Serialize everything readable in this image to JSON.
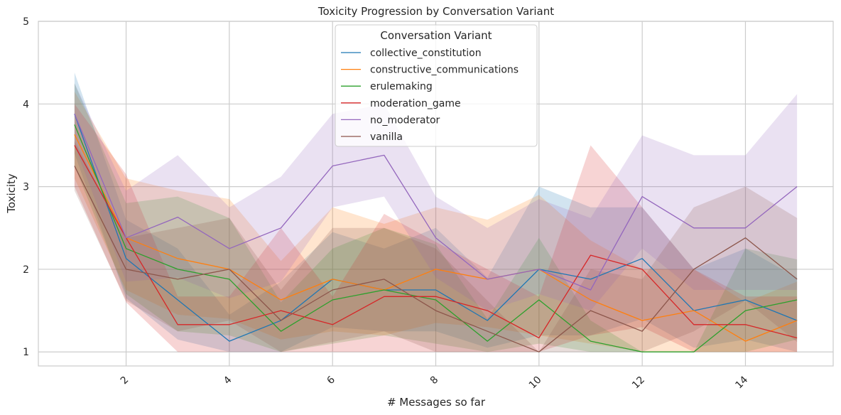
{
  "chart_data": {
    "type": "line",
    "title": "Toxicity Progression by Conversation Variant",
    "xlabel": "# Messages so far",
    "ylabel": "Toxicity",
    "xlim": [
      0.3,
      15.7
    ],
    "ylim": [
      0.83,
      5.0
    ],
    "x_ticks": [
      2,
      4,
      6,
      8,
      10,
      12,
      14
    ],
    "y_ticks": [
      1,
      2,
      3,
      4,
      5
    ],
    "x_tick_rotation": 45,
    "grid": true,
    "legend": {
      "title": "Conversation Variant",
      "placement": "top-center"
    },
    "x": [
      1,
      2,
      3,
      4,
      5,
      6,
      7,
      8,
      9,
      10,
      11,
      12,
      13,
      14,
      15
    ],
    "series": [
      {
        "name": "collective_constitution",
        "color": "#1f77b4",
        "values": [
          3.88,
          2.13,
          1.63,
          1.13,
          1.38,
          1.88,
          1.75,
          1.75,
          1.38,
          2.0,
          1.88,
          2.13,
          1.5,
          1.63,
          1.38
        ],
        "lower": [
          3.4,
          1.65,
          1.15,
          1.0,
          1.0,
          1.3,
          1.25,
          1.25,
          1.05,
          1.2,
          1.2,
          1.4,
          1.05,
          1.15,
          1.0
        ],
        "upper": [
          4.38,
          2.6,
          2.25,
          1.45,
          1.85,
          2.45,
          2.25,
          2.5,
          1.9,
          3.0,
          2.75,
          2.75,
          2.0,
          2.25,
          1.9
        ]
      },
      {
        "name": "constructive_communications",
        "color": "#ff7f0e",
        "values": [
          3.63,
          2.38,
          2.13,
          2.0,
          1.63,
          1.88,
          1.75,
          2.0,
          1.88,
          2.0,
          1.63,
          1.38,
          1.5,
          1.13,
          1.38
        ],
        "lower": [
          3.1,
          1.75,
          1.45,
          1.4,
          1.15,
          1.25,
          1.2,
          1.35,
          1.3,
          1.2,
          1.1,
          1.0,
          1.0,
          1.0,
          1.0
        ],
        "upper": [
          4.15,
          3.1,
          2.95,
          2.85,
          2.1,
          2.75,
          2.55,
          2.75,
          2.6,
          2.9,
          2.35,
          2.0,
          2.0,
          1.6,
          1.85
        ]
      },
      {
        "name": "erulemaking",
        "color": "#2ca02c",
        "values": [
          3.75,
          2.25,
          2.0,
          1.88,
          1.25,
          1.63,
          1.75,
          1.63,
          1.13,
          1.63,
          1.13,
          1.0,
          1.0,
          1.5,
          1.63
        ],
        "lower": [
          3.25,
          1.7,
          1.25,
          1.2,
          1.0,
          1.1,
          1.2,
          1.1,
          1.0,
          1.1,
          1.0,
          1.0,
          1.0,
          1.0,
          1.15
        ],
        "upper": [
          4.25,
          2.8,
          2.88,
          2.62,
          1.6,
          2.25,
          2.5,
          2.3,
          1.4,
          2.38,
          1.38,
          1.0,
          1.0,
          2.25,
          2.12
        ]
      },
      {
        "name": "moderation_game",
        "color": "#d62728",
        "values": [
          3.5,
          2.38,
          1.33,
          1.33,
          1.5,
          1.33,
          1.67,
          1.67,
          1.5,
          1.17,
          2.17,
          2.0,
          1.33,
          1.33,
          1.17
        ],
        "lower": [
          3.0,
          1.6,
          1.0,
          1.0,
          1.0,
          1.0,
          1.0,
          1.0,
          1.0,
          1.0,
          1.2,
          1.3,
          1.0,
          1.0,
          1.0
        ],
        "upper": [
          4.0,
          3.15,
          1.67,
          1.67,
          2.5,
          1.67,
          2.67,
          2.33,
          2.0,
          1.67,
          3.5,
          2.75,
          2.0,
          1.67,
          1.67
        ]
      },
      {
        "name": "no_moderator",
        "color": "#9467bd",
        "values": [
          3.88,
          2.38,
          2.63,
          2.25,
          2.5,
          3.25,
          3.38,
          2.38,
          1.88,
          2.0,
          1.75,
          2.88,
          2.5,
          2.5,
          3.0
        ],
        "lower": [
          3.5,
          1.85,
          1.9,
          1.65,
          1.85,
          2.75,
          2.88,
          1.9,
          1.5,
          1.7,
          1.5,
          2.25,
          1.75,
          1.75,
          1.75
        ],
        "upper": [
          4.25,
          2.95,
          3.38,
          2.75,
          3.12,
          3.88,
          4.0,
          2.88,
          2.5,
          2.85,
          2.62,
          3.62,
          3.38,
          3.38,
          4.12
        ]
      },
      {
        "name": "vanilla",
        "color": "#8c564b",
        "values": [
          3.25,
          2.0,
          1.88,
          2.0,
          1.38,
          1.75,
          1.88,
          1.5,
          1.25,
          1.0,
          1.5,
          1.25,
          2.0,
          2.38,
          1.88
        ],
        "lower": [
          2.95,
          1.62,
          1.25,
          1.38,
          1.0,
          1.12,
          1.25,
          1.0,
          1.0,
          1.0,
          1.0,
          1.0,
          1.25,
          1.62,
          1.12
        ],
        "upper": [
          3.55,
          2.38,
          2.5,
          2.62,
          1.75,
          2.5,
          2.5,
          2.25,
          1.62,
          1.0,
          2.0,
          1.88,
          2.75,
          3.0,
          2.62
        ]
      }
    ]
  }
}
